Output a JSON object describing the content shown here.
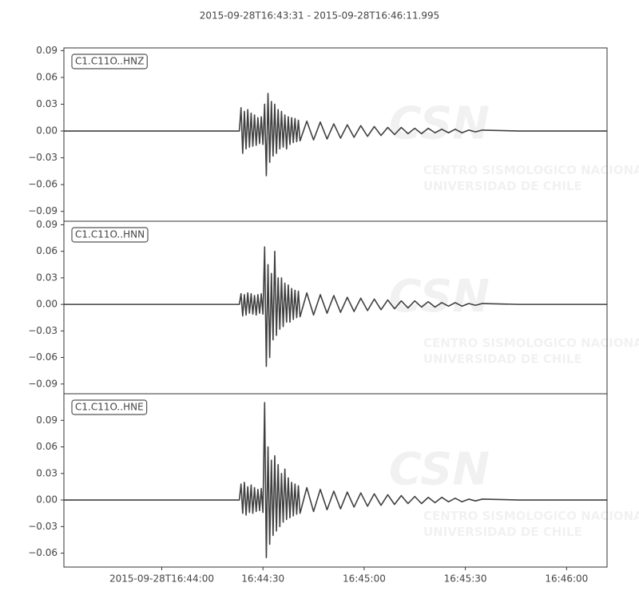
{
  "title": "2015-09-28T16:43:31  -  2015-09-28T16:46:11.995",
  "watermark": {
    "logo": "CSN",
    "line1": "CENTRO SISMOLOGICO NACIONAL",
    "line2": "UNIVERSIDAD DE CHILE"
  },
  "chart_data": [
    {
      "type": "line",
      "legend": "upper left",
      "x": [
        0,
        10,
        20,
        30,
        40,
        50,
        52,
        52.5,
        53,
        53.5,
        54,
        54.5,
        55,
        55.5,
        56,
        56.5,
        57,
        57.5,
        58,
        58.5,
        59,
        59.5,
        60,
        60.5,
        61,
        61.5,
        62,
        62.5,
        63,
        63.5,
        64,
        64.5,
        65,
        65.5,
        66,
        66.5,
        67,
        67.5,
        68,
        68.5,
        69,
        69.5,
        70,
        72,
        74,
        76,
        78,
        80,
        82,
        84,
        86,
        88,
        90,
        92,
        94,
        96,
        98,
        100,
        102,
        104,
        106,
        108,
        110,
        112,
        114,
        116,
        118,
        120,
        122,
        124,
        135,
        150,
        160.995
      ],
      "series": [
        {
          "name": "C1.C11O..HNZ",
          "color": "#404040",
          "values": [
            0,
            0,
            0,
            0,
            0,
            0,
            0,
            0.026,
            -0.025,
            0.022,
            -0.02,
            0.024,
            -0.018,
            0.02,
            -0.017,
            0.018,
            -0.016,
            0.015,
            -0.014,
            0.016,
            -0.015,
            0.03,
            -0.05,
            0.042,
            -0.035,
            0.033,
            -0.028,
            0.03,
            -0.025,
            0.024,
            -0.02,
            0.022,
            -0.018,
            0.018,
            -0.02,
            0.016,
            -0.015,
            0.015,
            -0.013,
            0.014,
            -0.012,
            0.012,
            -0.011,
            0.011,
            -0.01,
            0.01,
            -0.009,
            0.008,
            -0.008,
            0.007,
            -0.007,
            0.006,
            -0.006,
            0.005,
            -0.005,
            0.004,
            -0.004,
            0.004,
            -0.003,
            0.003,
            -0.003,
            0.003,
            -0.002,
            0.002,
            -0.002,
            0.002,
            -0.002,
            0.001,
            -0.001,
            0.001,
            0,
            0,
            0
          ]
        }
      ],
      "xlim": [
        0,
        160.995
      ],
      "ylim": [
        -0.101,
        0.093
      ],
      "yticks": [
        {
          "value": -0.09,
          "label": "−0.09"
        },
        {
          "value": -0.06,
          "label": "−0.06"
        },
        {
          "value": -0.03,
          "label": "−0.03"
        },
        {
          "value": 0,
          "label": "0.00"
        },
        0.03,
        0.06,
        0.09
      ]
    },
    {
      "type": "line",
      "legend": "upper left",
      "x": [
        0,
        10,
        20,
        30,
        40,
        50,
        52,
        52.5,
        53,
        53.5,
        54,
        54.5,
        55,
        55.5,
        56,
        56.5,
        57,
        57.5,
        58,
        58.5,
        59,
        59.5,
        60,
        60.5,
        61,
        61.5,
        62,
        62.5,
        63,
        63.5,
        64,
        64.5,
        65,
        65.5,
        66,
        66.5,
        67,
        67.5,
        68,
        68.5,
        69,
        69.5,
        70,
        72,
        74,
        76,
        78,
        80,
        82,
        84,
        86,
        88,
        90,
        92,
        94,
        96,
        98,
        100,
        102,
        104,
        106,
        108,
        110,
        112,
        114,
        116,
        118,
        120,
        122,
        124,
        135,
        150,
        160.995
      ],
      "series": [
        {
          "name": "C1.C11O..HNN",
          "color": "#404040",
          "values": [
            0,
            0,
            0,
            0,
            0,
            0,
            0,
            0.012,
            -0.013,
            0.011,
            -0.012,
            0.013,
            -0.01,
            0.012,
            -0.011,
            0.01,
            -0.012,
            0.011,
            -0.01,
            0.012,
            -0.011,
            0.065,
            -0.07,
            0.045,
            -0.06,
            0.035,
            -0.04,
            0.06,
            -0.035,
            0.03,
            -0.028,
            0.03,
            -0.025,
            0.024,
            -0.02,
            0.022,
            -0.02,
            0.018,
            -0.017,
            0.016,
            -0.015,
            0.015,
            -0.014,
            0.013,
            -0.012,
            0.011,
            -0.01,
            0.01,
            -0.009,
            0.008,
            -0.008,
            0.007,
            -0.007,
            0.006,
            -0.006,
            0.005,
            -0.005,
            0.004,
            -0.004,
            0.004,
            -0.003,
            0.003,
            -0.003,
            0.002,
            -0.002,
            0.002,
            -0.002,
            0.001,
            -0.001,
            0.001,
            0,
            0,
            0
          ]
        }
      ],
      "xlim": [
        0,
        160.995
      ],
      "ylim": [
        -0.101,
        0.094
      ],
      "yticks": [
        {
          "value": -0.09,
          "label": "−0.09"
        },
        {
          "value": -0.06,
          "label": "−0.06"
        },
        {
          "value": -0.03,
          "label": "−0.03"
        },
        {
          "value": 0,
          "label": "0.00"
        },
        0.03,
        0.06,
        0.09
      ]
    },
    {
      "type": "line",
      "legend": "upper left",
      "x": [
        0,
        10,
        20,
        30,
        40,
        50,
        52,
        52.5,
        53,
        53.5,
        54,
        54.5,
        55,
        55.5,
        56,
        56.5,
        57,
        57.5,
        58,
        58.5,
        59,
        59.5,
        60,
        60.5,
        61,
        61.5,
        62,
        62.5,
        63,
        63.5,
        64,
        64.5,
        65,
        65.5,
        66,
        66.5,
        67,
        67.5,
        68,
        68.5,
        69,
        69.5,
        70,
        72,
        74,
        76,
        78,
        80,
        82,
        84,
        86,
        88,
        90,
        92,
        94,
        96,
        98,
        100,
        102,
        104,
        106,
        108,
        110,
        112,
        114,
        116,
        118,
        120,
        122,
        124,
        135,
        150,
        160.995
      ],
      "series": [
        {
          "name": "C1.C11O..HNE",
          "color": "#404040",
          "values": [
            0,
            0,
            0,
            0,
            0,
            0,
            0,
            0.018,
            -0.015,
            0.02,
            -0.017,
            0.015,
            -0.014,
            0.017,
            -0.015,
            0.014,
            -0.013,
            0.012,
            -0.012,
            0.013,
            -0.014,
            0.11,
            -0.065,
            0.06,
            -0.05,
            0.045,
            -0.04,
            0.05,
            -0.035,
            0.04,
            -0.03,
            0.03,
            -0.025,
            0.035,
            -0.022,
            0.025,
            -0.02,
            0.02,
            -0.018,
            0.018,
            -0.016,
            0.016,
            -0.015,
            0.014,
            -0.013,
            0.012,
            -0.011,
            0.01,
            -0.01,
            0.009,
            -0.008,
            0.008,
            -0.007,
            0.007,
            -0.006,
            0.006,
            -0.005,
            0.005,
            -0.004,
            0.004,
            -0.004,
            0.003,
            -0.003,
            0.003,
            -0.002,
            0.002,
            -0.002,
            0.001,
            -0.001,
            0.001,
            0,
            0,
            0
          ]
        }
      ],
      "xlim": [
        0,
        160.995
      ],
      "ylim": [
        -0.0757,
        0.12
      ],
      "yticks": [
        {
          "value": -0.06,
          "label": "−0.06"
        },
        {
          "value": -0.03,
          "label": "−0.03"
        },
        {
          "value": 0,
          "label": "0.00"
        },
        0.03,
        0.06,
        0.09
      ],
      "xticks": [
        {
          "value": 29,
          "label": "2015-09-28T16:44:00"
        },
        {
          "value": 59,
          "label": "16:44:30"
        },
        {
          "value": 89,
          "label": "16:45:00"
        },
        {
          "value": 119,
          "label": "16:45:30"
        },
        {
          "value": 149,
          "label": "16:46:00"
        }
      ]
    }
  ]
}
